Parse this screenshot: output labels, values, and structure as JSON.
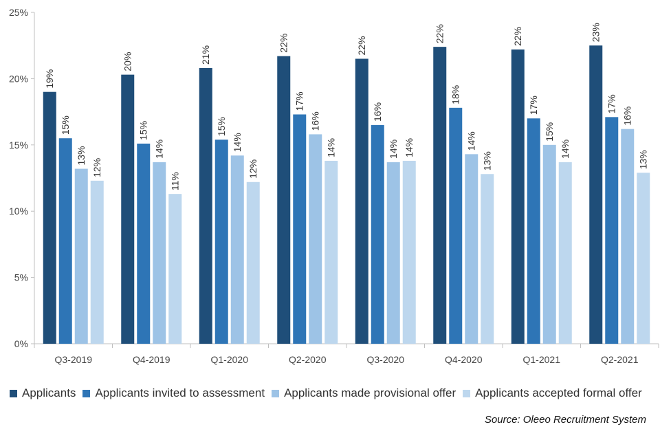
{
  "chart_data": {
    "type": "bar",
    "title": "",
    "xlabel": "",
    "ylabel": "",
    "ylim": [
      0,
      25
    ],
    "yticks": [
      0,
      5,
      10,
      15,
      20,
      25
    ],
    "ytick_labels": [
      "0%",
      "5%",
      "10%",
      "15%",
      "20%",
      "25%"
    ],
    "categories": [
      "Q3-2019",
      "Q4-2019",
      "Q1-2020",
      "Q2-2020",
      "Q3-2020",
      "Q4-2020",
      "Q1-2021",
      "Q2-2021"
    ],
    "series": [
      {
        "name": "Applicants",
        "color": "#1f4e79",
        "values": [
          19.0,
          20.3,
          20.8,
          21.7,
          21.5,
          22.4,
          22.2,
          22.5
        ],
        "labels": [
          "19%",
          "20%",
          "21%",
          "22%",
          "22%",
          "22%",
          "22%",
          "23%"
        ]
      },
      {
        "name": "Applicants invited to assessment",
        "color": "#2e75b6",
        "values": [
          15.5,
          15.1,
          15.4,
          17.3,
          16.5,
          17.8,
          17.0,
          17.1
        ],
        "labels": [
          "15%",
          "15%",
          "15%",
          "17%",
          "16%",
          "18%",
          "17%",
          "17%"
        ]
      },
      {
        "name": "Applicants made provisional offer",
        "color": "#9dc3e6",
        "values": [
          13.2,
          13.7,
          14.2,
          15.8,
          13.7,
          14.3,
          15.0,
          16.2
        ],
        "labels": [
          "13%",
          "14%",
          "14%",
          "16%",
          "14%",
          "14%",
          "15%",
          "16%"
        ]
      },
      {
        "name": "Applicants accepted formal offer",
        "color": "#bdd7ee",
        "values": [
          12.3,
          11.3,
          12.2,
          13.8,
          13.8,
          12.8,
          13.7,
          12.9
        ],
        "labels": [
          "12%",
          "11%",
          "12%",
          "14%",
          "14%",
          "13%",
          "14%",
          "13%"
        ]
      }
    ],
    "grid": false,
    "legend_position": "bottom"
  },
  "source_text": "Source: Oleeo Recruitment System"
}
